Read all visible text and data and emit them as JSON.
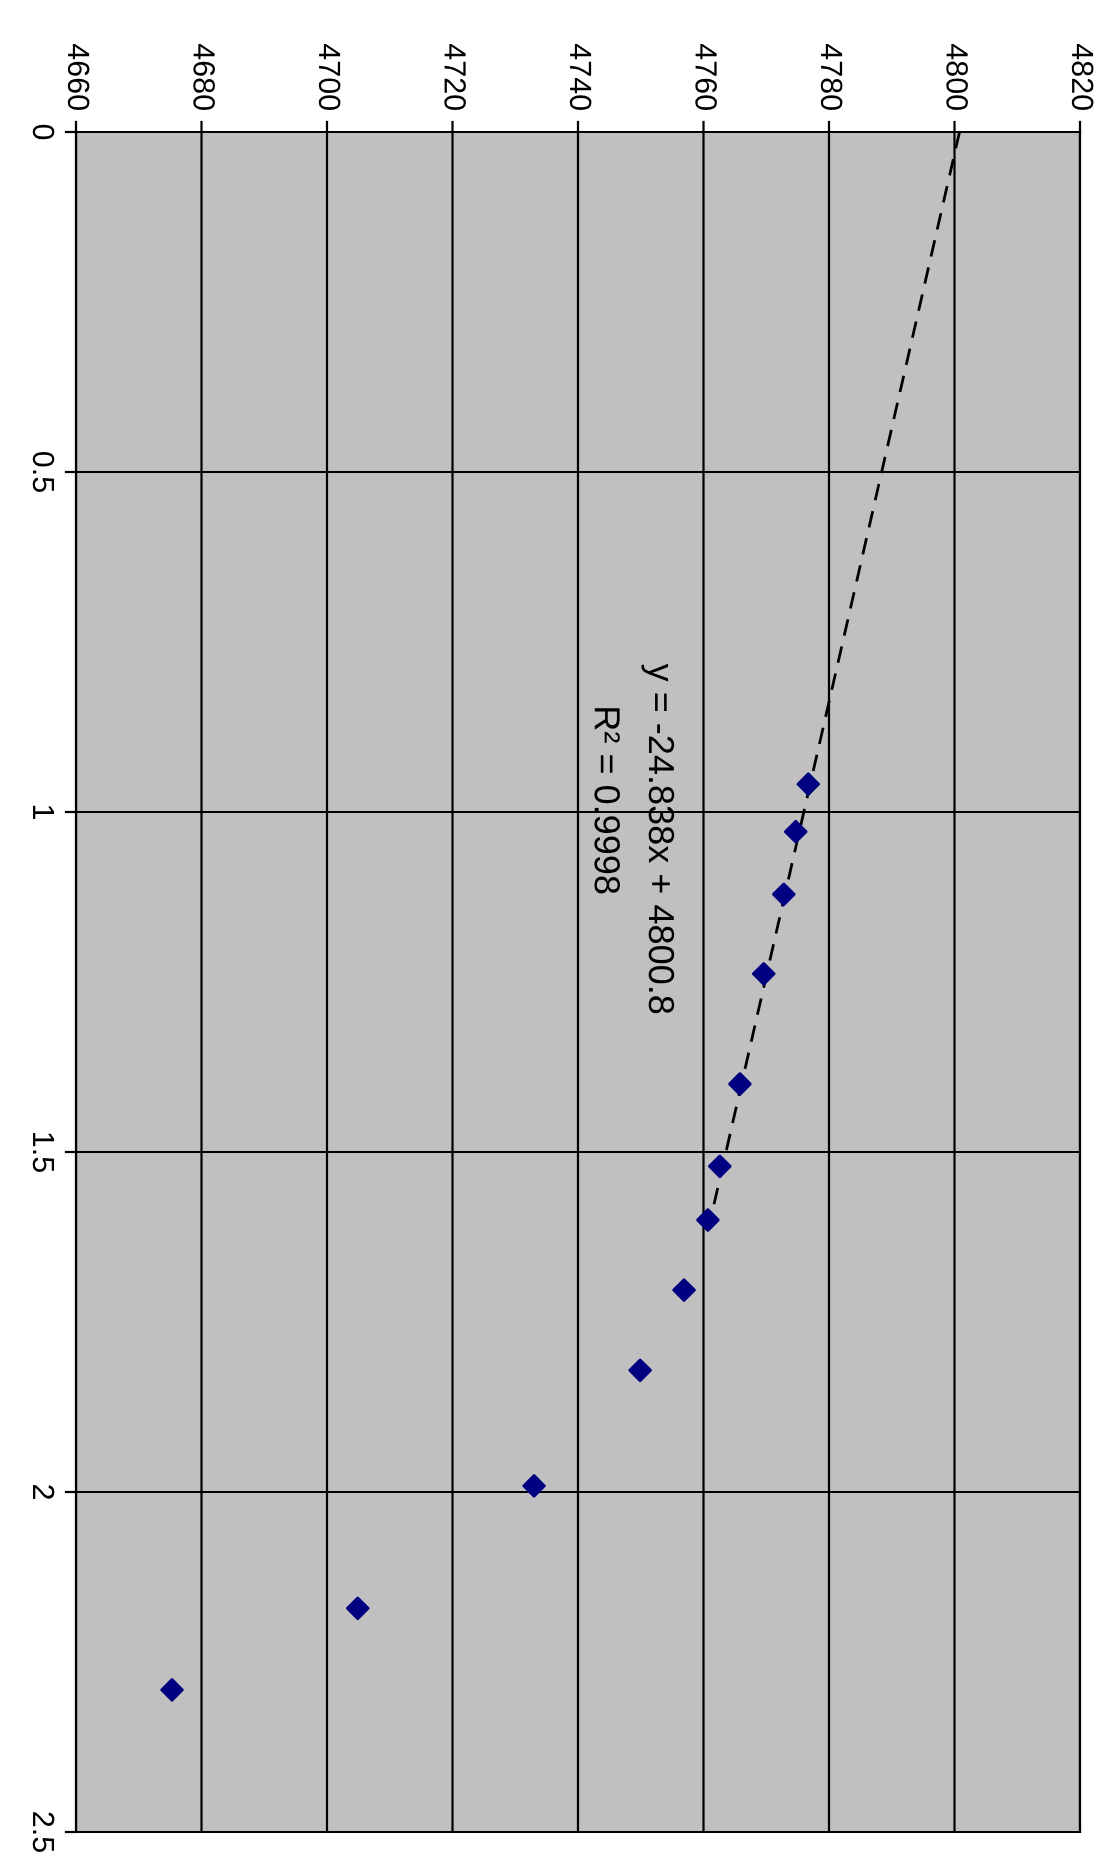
{
  "chart_data": {
    "type": "scatter",
    "xlim": [
      4660,
      4820
    ],
    "ylim": [
      2.5,
      0
    ],
    "xticks": [
      4660,
      4680,
      4700,
      4720,
      4740,
      4760,
      4780,
      4800,
      4820
    ],
    "yticks": [
      0,
      0.5,
      1,
      1.5,
      2,
      2.5
    ],
    "grid": true,
    "series": [
      {
        "color": "#000080",
        "marker": "diamond",
        "x": [
          4776.7,
          4774.7,
          4772.8,
          4769.6,
          4765.8,
          4762.6,
          4760.7,
          4756.9,
          4749.9,
          4733.0,
          4704.9,
          4675.3
        ],
        "values": [
          0.959,
          1.029,
          1.121,
          1.238,
          1.4,
          1.521,
          1.6,
          1.703,
          1.821,
          1.991,
          2.171,
          2.291
        ]
      },
      {
        "type": "line",
        "color": "#000000",
        "marker": "none",
        "line_style": "dashed",
        "x": [
          4800.8,
          4761.1
        ],
        "values": [
          0,
          1.6
        ]
      }
    ],
    "annotations": [
      "y = -24.838x + 4800.8",
      "R² = 0.9998"
    ]
  }
}
